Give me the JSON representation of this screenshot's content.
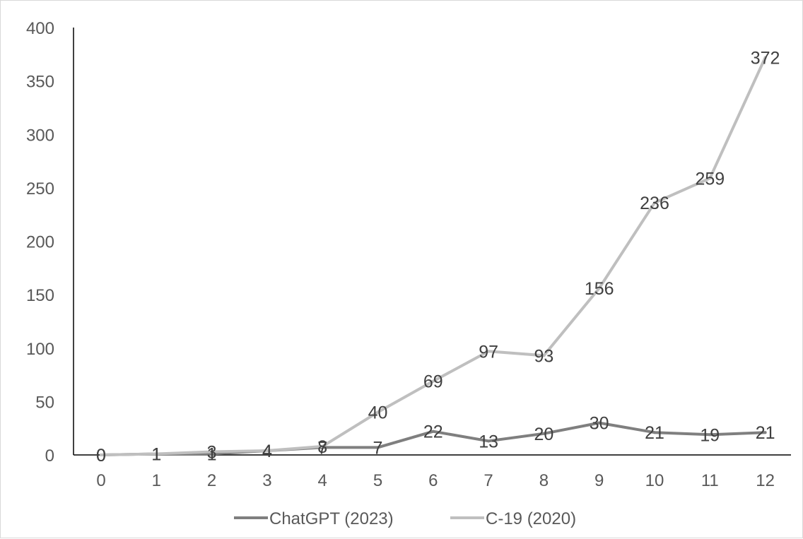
{
  "chart_data": {
    "type": "line",
    "title": "",
    "xlabel": "",
    "ylabel": "",
    "categories": [
      0,
      1,
      2,
      3,
      4,
      5,
      6,
      7,
      8,
      9,
      10,
      11,
      12
    ],
    "ylim": [
      0,
      400
    ],
    "yticks": [
      0,
      50,
      100,
      150,
      200,
      250,
      300,
      350,
      400
    ],
    "grid": false,
    "legend_position": "bottom",
    "series": [
      {
        "name": "ChatGPT (2023)",
        "color": "#7f7f7f",
        "values": [
          0,
          1,
          1,
          4,
          7,
          7,
          22,
          13,
          20,
          30,
          21,
          19,
          21
        ]
      },
      {
        "name": "C-19 (2020)",
        "color": "#bfbfbf",
        "values": [
          0,
          1,
          3,
          4,
          8,
          40,
          69,
          97,
          93,
          156,
          236,
          259,
          372
        ]
      }
    ]
  }
}
